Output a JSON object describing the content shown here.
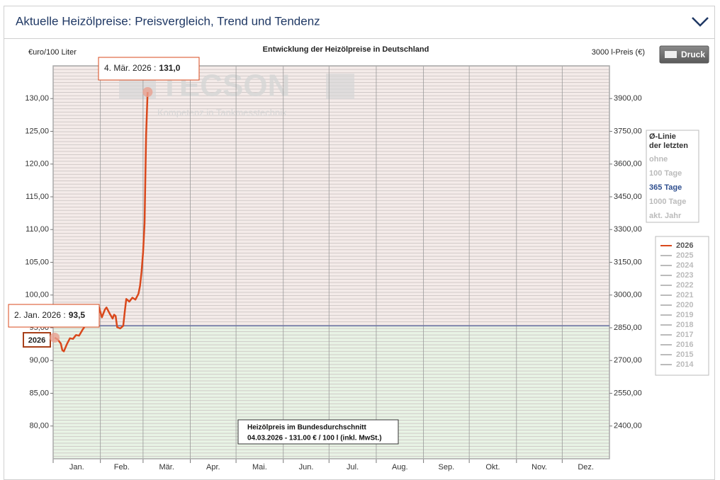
{
  "header": {
    "title": "Aktuelle Heizölpreise:  Preisvergleich, Trend und Tendenz"
  },
  "print_button": "Druck",
  "chart_data": {
    "type": "line",
    "title": "Entwicklung der Heizölpreise in Deutschland",
    "y_label": "€uro/100 Liter",
    "y2_label": "3000 l-Preis (€)",
    "watermark": "TECSON",
    "watermark_subtitle": "Kompetenz in Tankmesstechnik",
    "xlim": [
      1,
      366
    ],
    "xticks": [
      {
        "value": 1,
        "label": "Jan."
      },
      {
        "value": 32,
        "label": "Feb."
      },
      {
        "value": 60,
        "label": "Mär."
      },
      {
        "value": 91,
        "label": "Apr."
      },
      {
        "value": 121,
        "label": "Mai."
      },
      {
        "value": 152,
        "label": "Jun."
      },
      {
        "value": 182,
        "label": "Jul."
      },
      {
        "value": 213,
        "label": "Aug."
      },
      {
        "value": 244,
        "label": "Sep."
      },
      {
        "value": 274,
        "label": "Okt."
      },
      {
        "value": 305,
        "label": "Nov."
      },
      {
        "value": 335,
        "label": "Dez."
      }
    ],
    "ylim": [
      75,
      135
    ],
    "yticks": [
      {
        "value": 80,
        "label": "80,00"
      },
      {
        "value": 85,
        "label": "85,00"
      },
      {
        "value": 90,
        "label": "90,00"
      },
      {
        "value": 95,
        "label": "95,00"
      },
      {
        "value": 100,
        "label": "100,00"
      },
      {
        "value": 105,
        "label": "105,00"
      },
      {
        "value": 110,
        "label": "110,00"
      },
      {
        "value": 115,
        "label": "115,00"
      },
      {
        "value": 120,
        "label": "120,00"
      },
      {
        "value": 125,
        "label": "125,00"
      },
      {
        "value": 130,
        "label": "130,00"
      }
    ],
    "y2lim": [
      2250,
      4050
    ],
    "y2ticks": [
      {
        "value": 2400,
        "label": "2400,00"
      },
      {
        "value": 2550,
        "label": "2550,00"
      },
      {
        "value": 2700,
        "label": "2700,00"
      },
      {
        "value": 2850,
        "label": "2850,00"
      },
      {
        "value": 3000,
        "label": "3000,00"
      },
      {
        "value": 3150,
        "label": "3150,00"
      },
      {
        "value": 3300,
        "label": "3300,00"
      },
      {
        "value": 3450,
        "label": "3450,00"
      },
      {
        "value": 3600,
        "label": "3600,00"
      },
      {
        "value": 3750,
        "label": "3750,00"
      },
      {
        "value": 3900,
        "label": "3900,00"
      }
    ],
    "reference_line": 95.3,
    "reference_color": "#6b73a8",
    "above_color": "#f4ebe9",
    "below_color": "#e8f3e5",
    "series": [
      {
        "name": "2026",
        "color": "#d9481c",
        "x": [
          2,
          4,
          6,
          7,
          8,
          10,
          12,
          14,
          16,
          18,
          20,
          22,
          24,
          26,
          28,
          30,
          31,
          33,
          35,
          36,
          38,
          40,
          41,
          42,
          43,
          45,
          47,
          48,
          49,
          51,
          53,
          55,
          57,
          58,
          59,
          60,
          61,
          62,
          63
        ],
        "values": [
          93.5,
          93.2,
          92.6,
          91.6,
          91.4,
          92.5,
          93.4,
          93.3,
          93.9,
          93.8,
          94.6,
          95.3,
          95.8,
          96.3,
          97.0,
          97.6,
          98.2,
          96.6,
          97.8,
          98.1,
          97.2,
          96.4,
          97.0,
          96.8,
          95.1,
          94.9,
          95.3,
          97.5,
          99.4,
          99.0,
          99.6,
          99.3,
          100.2,
          101.4,
          103.5,
          106.5,
          111.0,
          124.5,
          131.0
        ]
      }
    ],
    "legend_inactive": {
      "color": "#bbbbbb",
      "names": [
        "2025",
        "2024",
        "2023",
        "2022",
        "2021",
        "2020",
        "2019",
        "2018",
        "2017",
        "2016",
        "2015",
        "2014"
      ]
    },
    "average_selector": {
      "title": [
        "Ø-Linie",
        "der letzten"
      ],
      "options": [
        "ohne",
        "100 Tage",
        "365 Tage",
        "1000 Tage",
        "akt. Jahr"
      ],
      "selected": 2
    },
    "annotations": [
      {
        "text": "2. Jan. 2026 :",
        "label": "93,5",
        "x": 2,
        "value": 93.5
      },
      {
        "text": "4. Mär. 2026 :",
        "label": "131,0",
        "x": 63,
        "value": 131.0
      }
    ],
    "info_box": [
      "Heizölpreis im Bundesdurchschnitt",
      "04.03.2026 - 131.00 € / 100 l (inkl. MwSt.)"
    ]
  }
}
